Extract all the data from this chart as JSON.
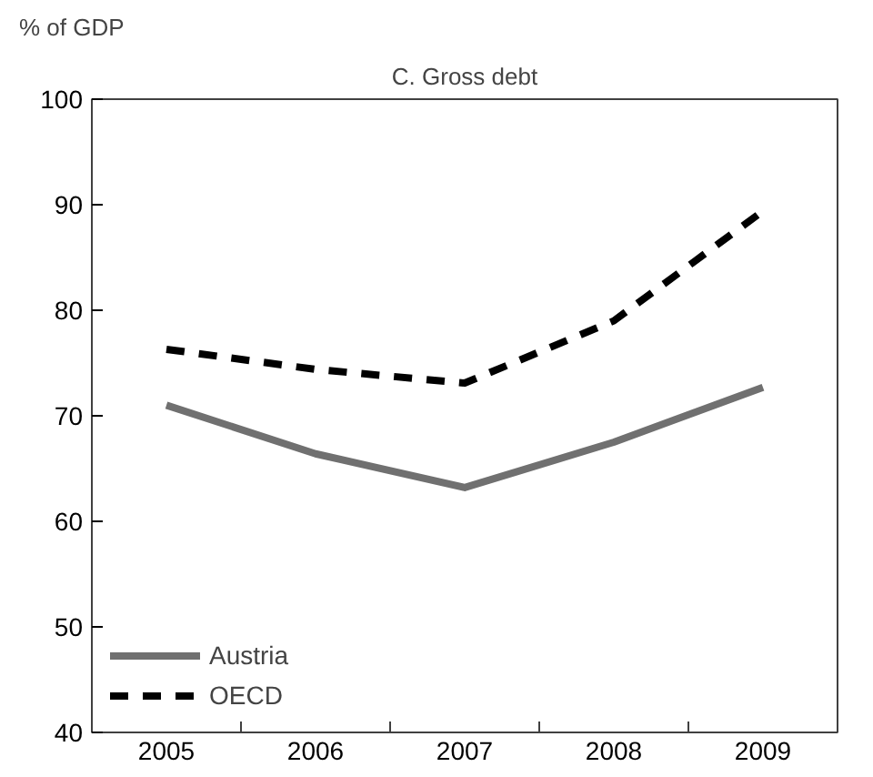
{
  "chart_data": {
    "type": "line",
    "title": "C. Gross debt",
    "ylabel": "% of GDP",
    "categories": [
      "2005",
      "2006",
      "2007",
      "2008",
      "2009"
    ],
    "series": [
      {
        "name": "Austria",
        "color": "#707070",
        "line_style": "solid",
        "values": [
          71.0,
          66.4,
          63.2,
          67.5,
          72.7
        ]
      },
      {
        "name": "OECD",
        "color": "#000000",
        "line_style": "dashed",
        "values": [
          76.3,
          74.4,
          73.1,
          79.0,
          89.4
        ]
      }
    ],
    "ylim": [
      40,
      100
    ],
    "yticks": [
      40,
      50,
      60,
      70,
      80,
      90,
      100
    ],
    "grid": false,
    "legend": "bottom left"
  }
}
